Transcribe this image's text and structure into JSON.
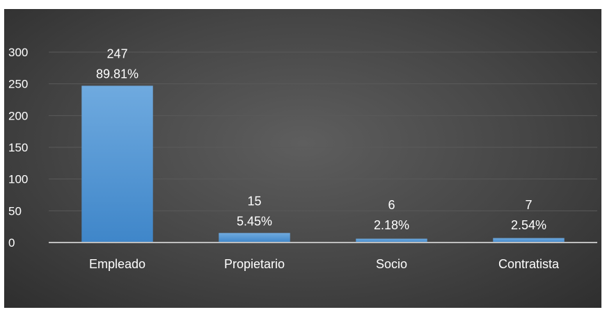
{
  "chart_data": {
    "type": "bar",
    "title": "",
    "xlabel": "",
    "ylabel": "",
    "categories": [
      "Empleado",
      "Propietario",
      "Socio",
      "Contratista"
    ],
    "values": [
      247,
      15,
      6,
      7
    ],
    "percent_labels": [
      "89.81%",
      "5.45%",
      "2.18%",
      "2.54%"
    ],
    "value_labels": [
      "247",
      "15",
      "6",
      "7"
    ],
    "ylim": [
      0,
      300
    ],
    "yticks": [
      "0",
      "50",
      "100",
      "150",
      "200",
      "250",
      "300"
    ],
    "grid": true,
    "legend": "none",
    "colors": {
      "bar": "#5b9bd5",
      "background": "#404040",
      "text": "#ffffff",
      "grid": "#5a5a5a",
      "axis": "#bfbfbf"
    }
  }
}
